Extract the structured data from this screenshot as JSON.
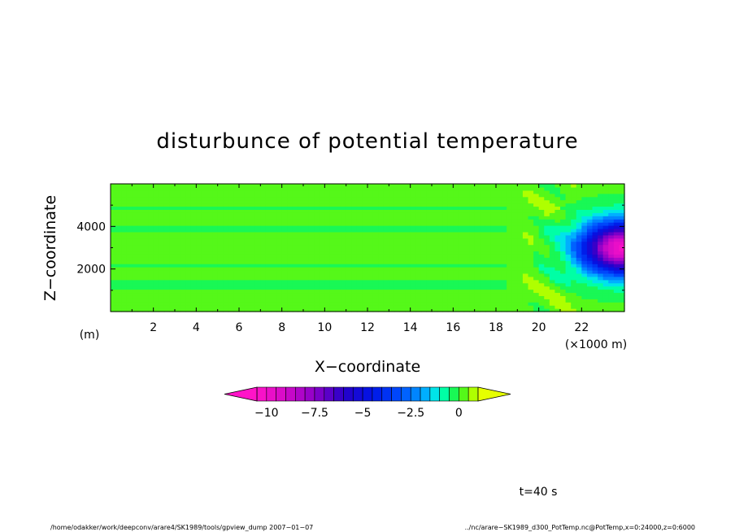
{
  "chart_data": {
    "type": "heatmap",
    "title": "disturbunce of potential temperature",
    "xlabel": "X−coordinate",
    "ylabel": "Z−coordinate",
    "x_unit": "(×1000 m)",
    "y_unit": "(m)",
    "xlim": [
      0,
      24
    ],
    "ylim": [
      0,
      6000
    ],
    "x_ticks": [
      2,
      4,
      6,
      8,
      10,
      12,
      14,
      16,
      18,
      20,
      22
    ],
    "x_tick_labels": [
      "2",
      "4",
      "6",
      "8",
      "10",
      "12",
      "14",
      "16",
      "18",
      "20",
      "22"
    ],
    "y_ticks": [
      2000,
      4000
    ],
    "y_tick_labels": [
      "2000",
      "4000"
    ],
    "background_value": 0.3,
    "bands": [
      {
        "z": [
          1100,
          1500
        ],
        "value": -0.3
      },
      {
        "z": [
          2150,
          2250
        ],
        "value": -0.15
      },
      {
        "z": [
          3750,
          4100
        ],
        "value": -0.3
      },
      {
        "z": [
          4800,
          4900
        ],
        "value": -0.15
      }
    ],
    "anomaly": {
      "x_center": 23.9,
      "z_center": 3000,
      "x_radius": 2.8,
      "z_radius": 1750,
      "min_value": -10.2
    },
    "colorbar": {
      "min": -10.5,
      "max": 1.0,
      "step": 0.5,
      "tick_values": [
        -10,
        -7.5,
        -5,
        -2.5,
        0
      ],
      "tick_labels": [
        "−10",
        "−7.5",
        "−5",
        "−2.5",
        "0"
      ],
      "extend": "both"
    },
    "color_stops": [
      {
        "v": -10.5,
        "color": "#ff14c8"
      },
      {
        "v": -9.0,
        "color": "#d20ac8"
      },
      {
        "v": -7.5,
        "color": "#8c00c8"
      },
      {
        "v": -6.0,
        "color": "#2800c8"
      },
      {
        "v": -4.5,
        "color": "#0014e6"
      },
      {
        "v": -3.0,
        "color": "#0050ff"
      },
      {
        "v": -2.0,
        "color": "#0096ff"
      },
      {
        "v": -1.5,
        "color": "#00c8ff"
      },
      {
        "v": -1.0,
        "color": "#00ffd2"
      },
      {
        "v": -0.5,
        "color": "#00ff78"
      },
      {
        "v": 0.0,
        "color": "#32f032"
      },
      {
        "v": 0.5,
        "color": "#78ff00"
      },
      {
        "v": 1.0,
        "color": "#e6ff00"
      }
    ],
    "under_color": "#ff14c8",
    "over_color": "#e6ff00"
  },
  "annotations": {
    "time": "t=40 s",
    "footer_left": "/home/odakker/work/deepconv/arare4/SK1989/tools/gpview_dump  2007−01−07",
    "footer_right": "../nc/arare−SK1989_d300_PotTemp.nc@PotTemp,x=0:24000,z=0:6000"
  }
}
